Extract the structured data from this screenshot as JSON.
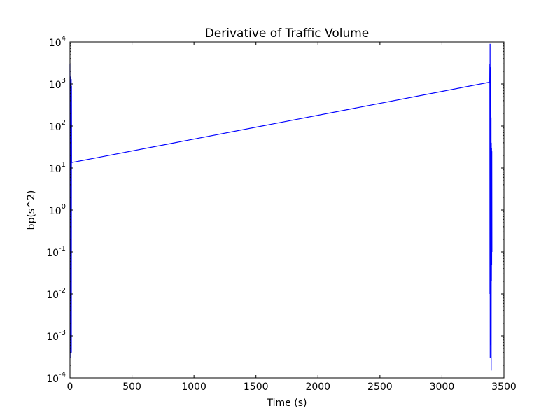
{
  "chart_data": {
    "type": "line",
    "title": "Derivative of Traffic Volume",
    "xlabel": "Time (s)",
    "ylabel": "bp(s^2)",
    "xlim": [
      0,
      3500
    ],
    "ylim": [
      0.0001,
      10000
    ],
    "yscale": "log",
    "grid": false,
    "x_ticks": [
      0,
      500,
      1000,
      1500,
      2000,
      2500,
      3000,
      3500
    ],
    "x_tick_labels": [
      "0",
      "500",
      "1000",
      "1500",
      "2000",
      "2500",
      "3000",
      "3500"
    ],
    "y_ticks": [
      {
        "base": "10",
        "exp": "-4",
        "value": 0.0001
      },
      {
        "base": "10",
        "exp": "-3",
        "value": 0.001
      },
      {
        "base": "10",
        "exp": "-2",
        "value": 0.01
      },
      {
        "base": "10",
        "exp": "-1",
        "value": 0.1
      },
      {
        "base": "10",
        "exp": "0",
        "value": 1
      },
      {
        "base": "10",
        "exp": "1",
        "value": 10
      },
      {
        "base": "10",
        "exp": "2",
        "value": 100
      },
      {
        "base": "10",
        "exp": "3",
        "value": 1000
      },
      {
        "base": "10",
        "exp": "4",
        "value": 10000
      }
    ],
    "series": [
      {
        "color": "#0000ff",
        "x": [
          0,
          1,
          2,
          3,
          4,
          5,
          6,
          7,
          8,
          9,
          10,
          11,
          12,
          13,
          3385,
          3386,
          3387,
          3388,
          3389,
          3390,
          3391,
          3392,
          3393,
          3394,
          3395,
          3396,
          3397,
          3398,
          3399,
          3400,
          3401,
          3402,
          3403
        ],
        "y": [
          3000,
          0.0003,
          1500,
          0.0008,
          800,
          0.002,
          1200,
          0.0004,
          300,
          0.0005,
          1300,
          0.0004,
          900,
          13.5,
          1100,
          3000,
          0.01,
          9000,
          0.0003,
          2500,
          0.02,
          150,
          0.0015,
          100,
          0.0006,
          160,
          0.00015,
          40,
          0.02,
          30,
          0.05,
          25,
          0.1
        ]
      }
    ]
  }
}
